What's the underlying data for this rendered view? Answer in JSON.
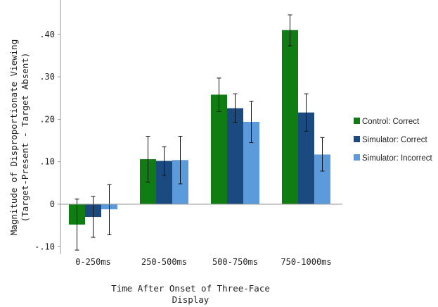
{
  "colors": {
    "control_correct": "#0f7d12",
    "simulator_correct": "#1a4a80",
    "simulator_incorrect": "#5b9bdc",
    "axis": "#999999",
    "error_bar": "#111111"
  },
  "chart_data": {
    "type": "bar",
    "title": "",
    "xlabel": "Time After Onset of Three-Face Display",
    "xlabel_lines": [
      "Time After Onset of Three-Face",
      "Display"
    ],
    "ylabel": "Magnitude of Disproportionate Viewing (Target-Present - Target Absent)",
    "ylabel_lines": [
      "Magnitude of Disproportionate Viewing",
      "(Target-Present - Target Absent)"
    ],
    "ylim": [
      -0.12,
      0.46
    ],
    "yticks": [
      -0.1,
      0,
      0.1,
      0.2,
      0.3,
      0.4
    ],
    "ytick_labels": [
      "-.10",
      "0",
      ".10",
      ".20",
      ".30",
      ".40"
    ],
    "grid": false,
    "legend_position": "right",
    "categories": [
      "0-250ms",
      "250-500ms",
      "500-750ms",
      "750-1000ms"
    ],
    "series": [
      {
        "name": "Control: Correct",
        "color_key": "control_correct",
        "values": [
          -0.048,
          0.106,
          0.258,
          0.41
        ],
        "error_low": [
          -0.108,
          0.052,
          0.218,
          0.373
        ],
        "error_high": [
          0.012,
          0.16,
          0.297,
          0.446
        ]
      },
      {
        "name": "Simulator: Correct",
        "color_key": "simulator_correct",
        "values": [
          -0.03,
          0.102,
          0.226,
          0.216
        ],
        "error_low": [
          -0.078,
          0.068,
          0.192,
          0.172
        ],
        "error_high": [
          0.018,
          0.135,
          0.26,
          0.26
        ]
      },
      {
        "name": "Simulator: Incorrect",
        "color_key": "simulator_incorrect",
        "values": [
          -0.012,
          0.104,
          0.194,
          0.117
        ],
        "error_low": [
          -0.072,
          0.048,
          0.145,
          0.078
        ],
        "error_high": [
          0.046,
          0.16,
          0.242,
          0.157
        ]
      }
    ]
  }
}
